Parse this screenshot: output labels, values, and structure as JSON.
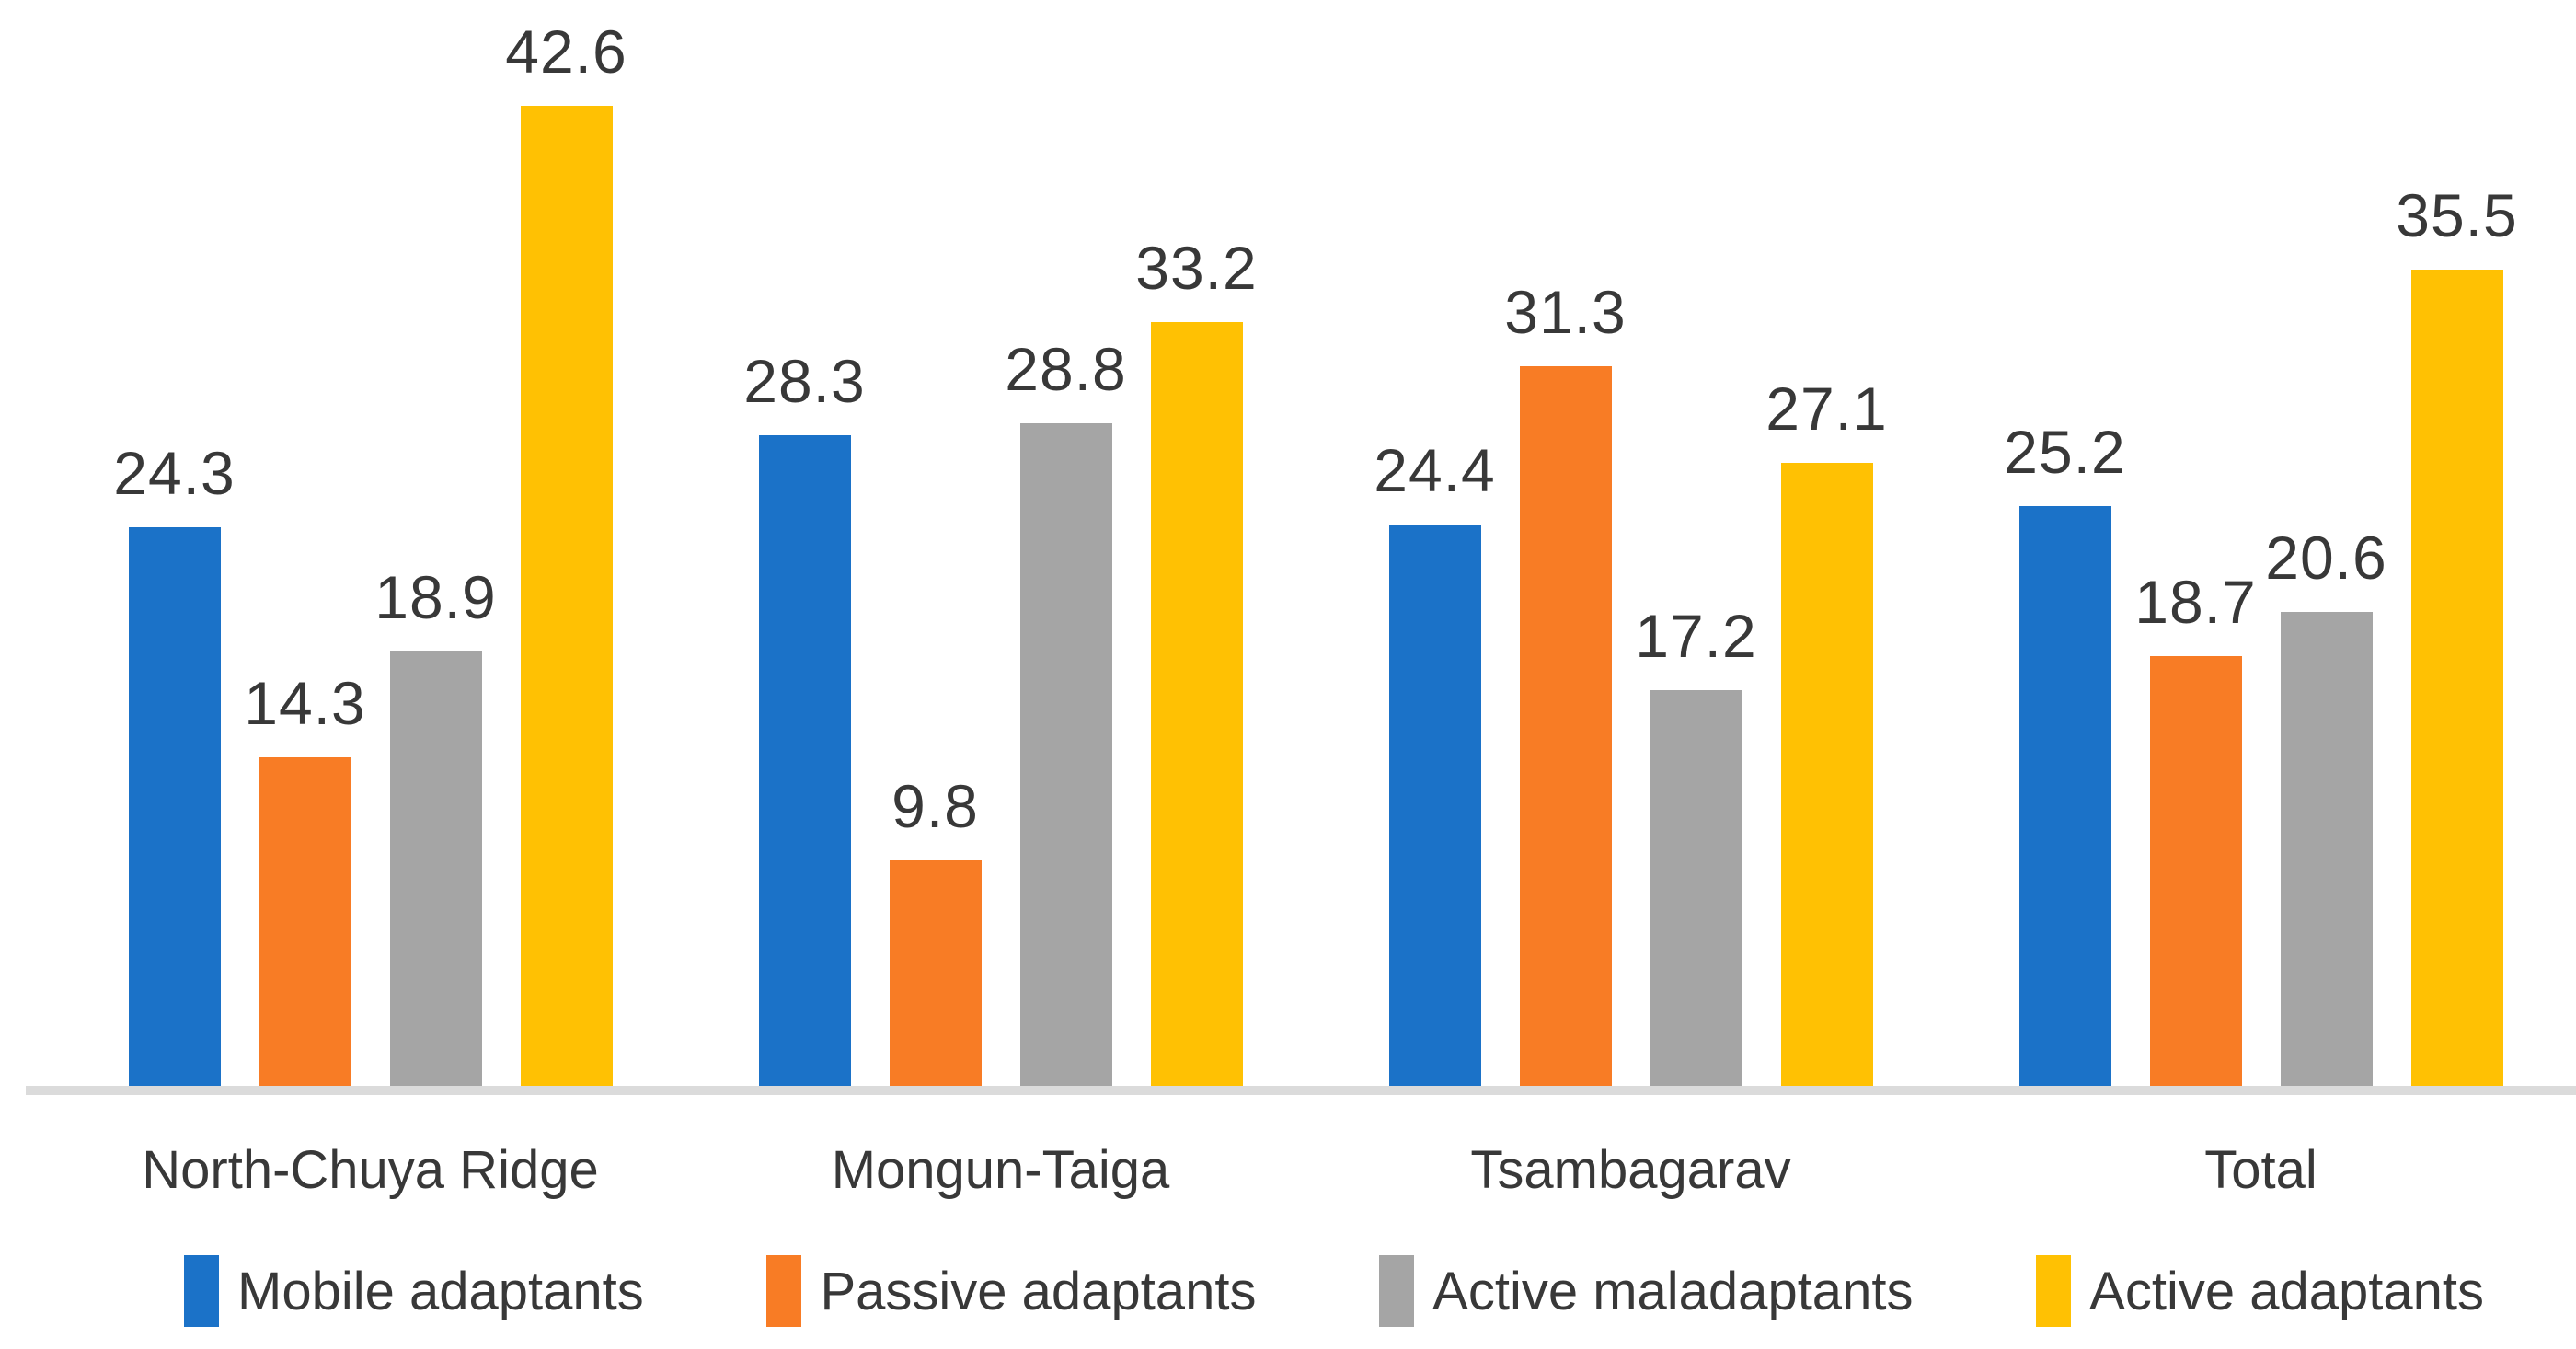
{
  "chart_data": {
    "type": "bar",
    "title": "",
    "xlabel": "",
    "ylabel": "",
    "categories": [
      "North-Chuya Ridge",
      "Mongun-Taiga",
      "Tsambagarav",
      "Total"
    ],
    "series": [
      {
        "name": "Mobile adaptants",
        "color": "#1b72c8",
        "values": [
          24.3,
          28.3,
          24.4,
          25.2
        ]
      },
      {
        "name": "Passive adaptants",
        "color": "#f87c25",
        "values": [
          14.3,
          9.8,
          31.3,
          18.7
        ]
      },
      {
        "name": "Active maladaptants",
        "color": "#a5a5a5",
        "values": [
          18.9,
          28.8,
          17.2,
          20.6
        ]
      },
      {
        "name": "Active adaptants",
        "color": "#ffc103",
        "values": [
          42.6,
          33.2,
          27.1,
          35.5
        ]
      }
    ],
    "ylim": [
      0,
      47
    ],
    "grid": false,
    "y_axis_visible": false,
    "data_labels": true,
    "legend_position": "bottom",
    "axis_line_color": "#dbdbdb",
    "text_color": "#383838"
  }
}
